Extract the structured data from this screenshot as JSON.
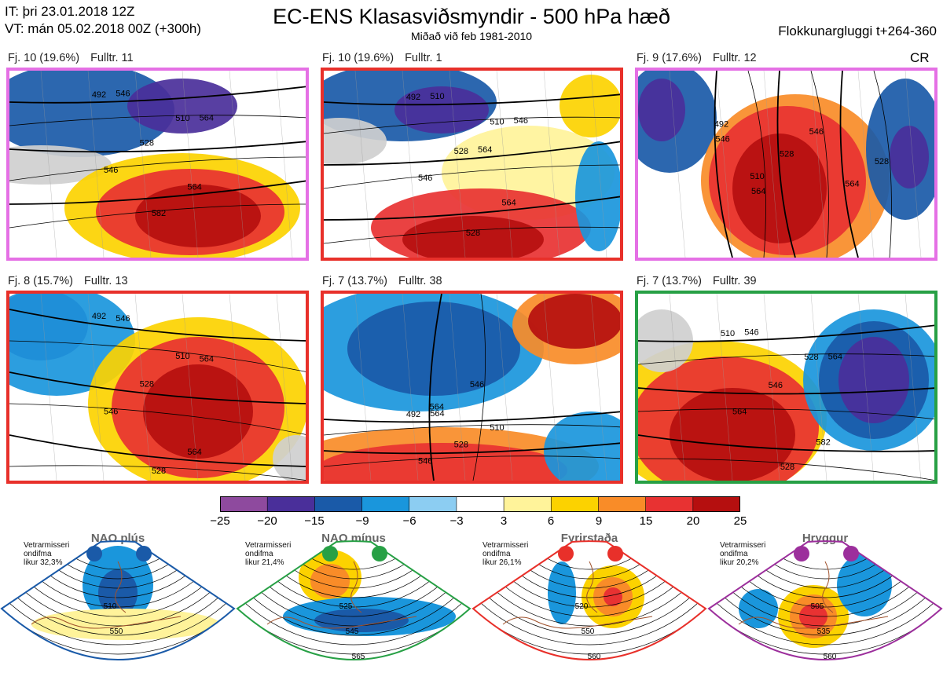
{
  "header": {
    "issue_time": "IT: þri 23.01.2018 12Z",
    "valid_time": "VT: mán 05.02.2018 00Z  (+300h)",
    "title": "EC-ENS Klasasviðsmyndir - 500 hPa hæð",
    "subtitle": "Miðað við feb 1981-2010",
    "window": "Flokkunargluggi t+264-360",
    "corner_tag": "CR"
  },
  "clusters": [
    {
      "members_label": "Fj. 10 (19.6%)",
      "rep_label": "Fulltr. 11",
      "border_color": "#e570e5",
      "pattern": "ridge",
      "contours": [
        "492",
        "510",
        "528",
        "546",
        "564",
        "582",
        "546",
        "564"
      ]
    },
    {
      "members_label": "Fj. 10 (19.6%)",
      "rep_label": "Fulltr. 1",
      "border_color": "#e8302a",
      "pattern": "block",
      "contours": [
        "492",
        "510",
        "528",
        "546",
        "564",
        "528",
        "510",
        "546",
        "564"
      ]
    },
    {
      "members_label": "Fj. 9 (17.6%)",
      "rep_label": "Fulltr. 12",
      "border_color": "#e570e5",
      "pattern": "ridge",
      "contours": [
        "492",
        "510",
        "528",
        "546",
        "564",
        "528",
        "546",
        "564"
      ]
    },
    {
      "members_label": "Fj. 8 (15.7%)",
      "rep_label": "Fulltr. 13",
      "border_color": "#e8302a",
      "pattern": "block",
      "contours": [
        "492",
        "510",
        "528",
        "546",
        "564",
        "528",
        "546",
        "564"
      ]
    },
    {
      "members_label": "Fj. 7 (13.7%)",
      "rep_label": "Fulltr. 38",
      "border_color": "#e8302a",
      "pattern": "block",
      "contours": [
        "492",
        "510",
        "528",
        "546",
        "564",
        "546",
        "564"
      ]
    },
    {
      "members_label": "Fj. 7 (13.7%)",
      "rep_label": "Fulltr. 39",
      "border_color": "#27a045",
      "pattern": "nao-minus",
      "contours": [
        "510",
        "528",
        "546",
        "564",
        "582",
        "528",
        "546",
        "564"
      ]
    }
  ],
  "colorbar": {
    "ticks": [
      "−25",
      "−20",
      "−15",
      "−9",
      "−6",
      "−3",
      "3",
      "6",
      "9",
      "15",
      "20",
      "25"
    ],
    "colors": [
      "#8e4a9e",
      "#4a2f9a",
      "#1a5aa8",
      "#1a96dc",
      "#8ccdf2",
      "#ffffff",
      "#fff39a",
      "#fcd200",
      "#f98c28",
      "#e83232",
      "#b50f0f"
    ]
  },
  "regimes": [
    {
      "name": "NAO plús",
      "info_line1": "Vetrarmisseri",
      "info_line2": "ondifma",
      "info_line3": "likur 32,3%",
      "color": "#1a5aa8",
      "contours": [
        "510",
        "550"
      ]
    },
    {
      "name": "NAO mínus",
      "info_line1": "Vetrarmisseri",
      "info_line2": "ondifma",
      "info_line3": "likur 21,4%",
      "color": "#27a045",
      "contours": [
        "525",
        "545",
        "565"
      ]
    },
    {
      "name": "Fyrirstaða",
      "info_line1": "Vetrarmisseri",
      "info_line2": "ondifma",
      "info_line3": "likur 26,1%",
      "color": "#e8302a",
      "contours": [
        "520",
        "550",
        "560"
      ]
    },
    {
      "name": "Hryggur",
      "info_line1": "Vetrarmisseri",
      "info_line2": "ondifma",
      "info_line3": "likur 20,2%",
      "color": "#9c2f9c",
      "contours": [
        "505",
        "535",
        "560"
      ]
    }
  ]
}
